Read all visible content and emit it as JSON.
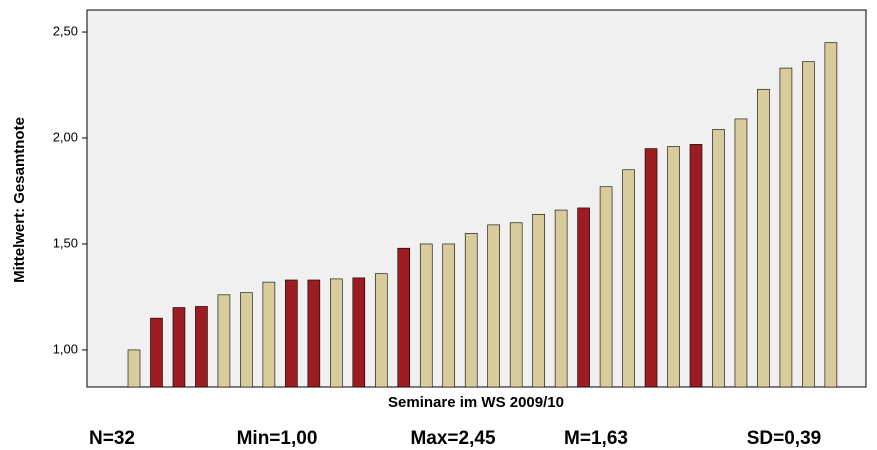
{
  "chart_data": {
    "type": "bar",
    "y_label": "Mittelwert: Gesamtnote",
    "x_label": "Seminare im WS 2009/10",
    "categories": [
      null,
      null,
      null,
      null,
      null,
      null,
      null,
      null,
      null,
      null,
      null,
      null,
      null,
      null,
      null,
      null,
      null,
      null,
      null,
      null,
      null,
      null,
      null,
      null,
      null,
      null,
      null,
      null,
      null,
      null,
      null,
      null
    ],
    "values": [
      1.0,
      1.15,
      1.2,
      1.205,
      1.26,
      1.27,
      1.32,
      1.33,
      1.33,
      1.335,
      1.34,
      1.36,
      1.48,
      1.5,
      1.5,
      1.55,
      1.59,
      1.6,
      1.64,
      1.66,
      1.67,
      1.77,
      1.85,
      1.95,
      1.96,
      1.97,
      2.04,
      2.09,
      2.23,
      2.33,
      2.36,
      2.45
    ],
    "colors": [
      "#d8cc9c",
      "#9c1c22",
      "#9c1c22",
      "#9c1c22",
      "#d8cc9c",
      "#d8cc9c",
      "#d8cc9c",
      "#9c1c22",
      "#9c1c22",
      "#d8cc9c",
      "#9c1c22",
      "#d8cc9c",
      "#9c1c22",
      "#d8cc9c",
      "#d8cc9c",
      "#d8cc9c",
      "#d8cc9c",
      "#d8cc9c",
      "#d8cc9c",
      "#d8cc9c",
      "#9c1c22",
      "#d8cc9c",
      "#d8cc9c",
      "#9c1c22",
      "#d8cc9c",
      "#9c1c22",
      "#d8cc9c",
      "#d8cc9c",
      "#d8cc9c",
      "#d8cc9c",
      "#d8cc9c",
      "#d8cc9c"
    ],
    "ylim": [
      0.825,
      2.604
    ],
    "yticks": [
      {
        "value": 1,
        "label": "1,00"
      },
      {
        "value": 1.5,
        "label": "1,50"
      },
      {
        "value": 2,
        "label": "2,00"
      },
      {
        "value": 2.5,
        "label": "2,50"
      }
    ],
    "annotations": [
      "N=32",
      "Min=1,00",
      "Max=2,45",
      "M=1,63",
      "SD=0,39"
    ]
  }
}
